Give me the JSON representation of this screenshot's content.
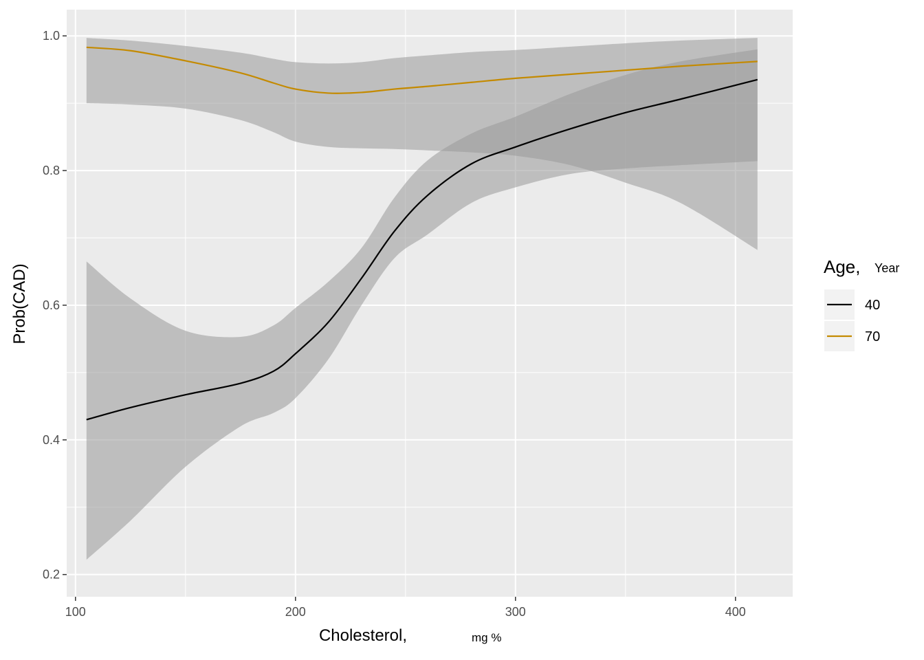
{
  "chart_data": {
    "type": "line",
    "xlabel": "Cholesterol,",
    "xlabel_unit": "mg %",
    "ylabel": "Prob(CAD)",
    "xlim": [
      96,
      426
    ],
    "ylim": [
      0.167,
      1.039
    ],
    "x_ticks": [
      100,
      200,
      300,
      400
    ],
    "x_tick_labels": [
      "100",
      "200",
      "300",
      "400"
    ],
    "y_ticks": [
      0.2,
      0.4,
      0.6,
      0.8,
      1.0
    ],
    "y_tick_labels": [
      "0.2",
      "0.4",
      "0.6",
      "0.8",
      "1.0"
    ],
    "grid": true,
    "panel_background": "#ebebeb",
    "band_color": "#999999",
    "legend": {
      "title": "Age,",
      "title_unit": "Year",
      "position": "right"
    },
    "series": [
      {
        "name": "40",
        "color": "#000000",
        "x": [
          105,
          125,
          150,
          175,
          190,
          200,
          215,
          230,
          245,
          260,
          280,
          300,
          325,
          350,
          375,
          410
        ],
        "y": [
          0.43,
          0.448,
          0.467,
          0.484,
          0.502,
          0.528,
          0.575,
          0.64,
          0.71,
          0.763,
          0.81,
          0.835,
          0.862,
          0.886,
          0.906,
          0.935
        ],
        "lower": [
          0.222,
          0.28,
          0.36,
          0.42,
          0.44,
          0.462,
          0.52,
          0.6,
          0.67,
          0.705,
          0.752,
          0.775,
          0.795,
          0.803,
          0.808,
          0.814
        ],
        "upper": [
          0.665,
          0.61,
          0.562,
          0.553,
          0.57,
          0.596,
          0.635,
          0.685,
          0.76,
          0.815,
          0.855,
          0.88,
          0.914,
          0.942,
          0.962,
          0.98
        ]
      },
      {
        "name": "70",
        "color": "#c48a00",
        "x": [
          105,
          125,
          150,
          175,
          190,
          200,
          215,
          230,
          245,
          260,
          280,
          300,
          325,
          350,
          375,
          410
        ],
        "y": [
          0.983,
          0.978,
          0.963,
          0.945,
          0.93,
          0.921,
          0.915,
          0.916,
          0.921,
          0.925,
          0.931,
          0.937,
          0.943,
          0.949,
          0.955,
          0.962
        ],
        "lower": [
          0.9,
          0.898,
          0.892,
          0.875,
          0.857,
          0.843,
          0.835,
          0.833,
          0.832,
          0.83,
          0.827,
          0.822,
          0.808,
          0.782,
          0.752,
          0.682
        ],
        "upper": [
          0.997,
          0.993,
          0.985,
          0.975,
          0.966,
          0.961,
          0.959,
          0.961,
          0.967,
          0.971,
          0.976,
          0.979,
          0.984,
          0.989,
          0.993,
          0.997
        ]
      }
    ]
  }
}
